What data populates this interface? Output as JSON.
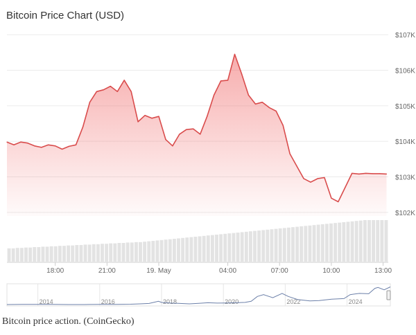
{
  "chart_data": {
    "type": "area",
    "title": "Bitcoin Price Chart (USD)",
    "currency": "USD",
    "y_ticks": [
      {
        "value": 102000,
        "label": "$102K"
      },
      {
        "value": 103000,
        "label": "$103K"
      },
      {
        "value": 104000,
        "label": "$104K"
      },
      {
        "value": 105000,
        "label": "$105K"
      },
      {
        "value": 106000,
        "label": "$106K"
      },
      {
        "value": 107000,
        "label": "$107K"
      }
    ],
    "ylim": [
      101900,
      107100
    ],
    "x_range_hours": [
      15.2,
      37.3
    ],
    "x_ticks": [
      {
        "hour": 18,
        "label": "18:00"
      },
      {
        "hour": 21,
        "label": "21:00"
      },
      {
        "hour": 24,
        "label": "19. May"
      },
      {
        "hour": 28,
        "label": "04:00"
      },
      {
        "hour": 31,
        "label": "07:00"
      },
      {
        "hour": 34,
        "label": "10:00"
      },
      {
        "hour": 37,
        "label": "13:00"
      }
    ],
    "series": [
      {
        "name": "Price",
        "color": "#d94c4c",
        "x_hours": [
          15.2,
          15.6,
          16.0,
          16.4,
          16.8,
          17.2,
          17.6,
          18.0,
          18.4,
          18.8,
          19.2,
          19.6,
          20.0,
          20.4,
          20.8,
          21.2,
          21.6,
          22.0,
          22.4,
          22.8,
          23.2,
          23.6,
          24.0,
          24.4,
          24.8,
          25.2,
          25.6,
          26.0,
          26.4,
          26.8,
          27.2,
          27.6,
          28.0,
          28.4,
          28.8,
          29.2,
          29.6,
          30.0,
          30.4,
          30.8,
          31.2,
          31.6,
          32.0,
          32.4,
          32.8,
          33.2,
          33.6,
          34.0,
          34.4,
          34.8,
          35.2,
          35.6,
          36.0,
          36.4,
          36.8,
          37.2
        ],
        "y": [
          103980,
          103900,
          103980,
          103950,
          103870,
          103830,
          103900,
          103870,
          103780,
          103860,
          103900,
          104400,
          105100,
          105400,
          105450,
          105550,
          105400,
          105720,
          105400,
          104550,
          104730,
          104650,
          104700,
          104050,
          103870,
          104200,
          104330,
          104350,
          104200,
          104700,
          105300,
          105700,
          105720,
          106450,
          105900,
          105300,
          105050,
          105100,
          104950,
          104850,
          104450,
          103650,
          103300,
          102950,
          102850,
          102950,
          102980,
          102400,
          102300,
          102700,
          103100,
          103080,
          103100,
          103090,
          103090,
          103080
        ]
      }
    ],
    "volume": {
      "name": "Volume",
      "relative_values": [
        0.32,
        0.32,
        0.33,
        0.33,
        0.34,
        0.34,
        0.35,
        0.35,
        0.36,
        0.36,
        0.37,
        0.37,
        0.38,
        0.38,
        0.39,
        0.39,
        0.4,
        0.4,
        0.41,
        0.41,
        0.42,
        0.42,
        0.43,
        0.43,
        0.44,
        0.44,
        0.45,
        0.45,
        0.46,
        0.46,
        0.47,
        0.47,
        0.48,
        0.49,
        0.5,
        0.51,
        0.52,
        0.53,
        0.54,
        0.55,
        0.56,
        0.57,
        0.58,
        0.59,
        0.6,
        0.61,
        0.62,
        0.63,
        0.64,
        0.65,
        0.66,
        0.67,
        0.68,
        0.69,
        0.7,
        0.71,
        0.72,
        0.73,
        0.74,
        0.75,
        0.76,
        0.77,
        0.78,
        0.79,
        0.8,
        0.81,
        0.82,
        0.83,
        0.84,
        0.85,
        0.86,
        0.87,
        0.88,
        0.89,
        0.9,
        0.91,
        0.92,
        0.93,
        0.94,
        0.95,
        0.96,
        0.97,
        0.98,
        0.99,
        1.0,
        1.0,
        1.0,
        1.0,
        1.0,
        1.0
      ]
    },
    "navigator": {
      "x_years": [
        2013.0,
        2013.5,
        2014.0,
        2014.5,
        2015.0,
        2015.5,
        2016.0,
        2016.5,
        2017.0,
        2017.3,
        2017.6,
        2017.9,
        2018.0,
        2018.3,
        2018.6,
        2018.9,
        2019.2,
        2019.5,
        2019.8,
        2020.1,
        2020.4,
        2020.7,
        2020.9,
        2021.1,
        2021.3,
        2021.6,
        2021.9,
        2022.1,
        2022.4,
        2022.8,
        2023.1,
        2023.5,
        2023.9,
        2024.1,
        2024.4,
        2024.7,
        2024.9,
        2025.0,
        2025.2,
        2025.4
      ],
      "y_rel": [
        0.0,
        0.01,
        0.01,
        0.01,
        0.0,
        0.0,
        0.01,
        0.01,
        0.02,
        0.04,
        0.06,
        0.18,
        0.12,
        0.08,
        0.06,
        0.04,
        0.07,
        0.1,
        0.08,
        0.09,
        0.1,
        0.12,
        0.18,
        0.45,
        0.55,
        0.38,
        0.62,
        0.45,
        0.28,
        0.2,
        0.22,
        0.3,
        0.33,
        0.55,
        0.62,
        0.6,
        0.9,
        0.95,
        0.82,
        0.98
      ],
      "year_ticks": [
        {
          "year": 2014,
          "label": "2014"
        },
        {
          "year": 2016,
          "label": "2016"
        },
        {
          "year": 2018,
          "label": "2018"
        },
        {
          "year": 2020,
          "label": "2020"
        },
        {
          "year": 2022,
          "label": "2022"
        },
        {
          "year": 2024,
          "label": "2024"
        }
      ]
    }
  },
  "caption": "Bitcoin price action. (CoinGecko)"
}
